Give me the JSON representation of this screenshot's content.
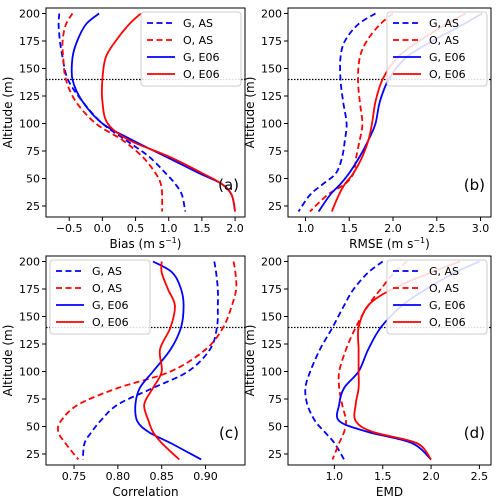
{
  "chart_data": [
    {
      "type": "line",
      "panel_label": "(a)",
      "xlabel": "Bias (m s$^{-1}$)",
      "xlabel_main": "Bias (m s",
      "xlabel_sup": "−1",
      "xlabel_end": ")",
      "ylabel": "Altitude (m)",
      "xlim": [
        -0.85,
        2.15
      ],
      "ylim": [
        15,
        205
      ],
      "xticks": [
        -0.5,
        0.0,
        0.5,
        1.0,
        1.5,
        2.0
      ],
      "xtick_labels": [
        "−0.5",
        "0.0",
        "0.5",
        "1.0",
        "1.5",
        "2.0"
      ],
      "yticks": [
        25,
        50,
        75,
        100,
        125,
        150,
        175,
        200
      ],
      "ytick_labels": [
        "25",
        "50",
        "75",
        "100",
        "125",
        "150",
        "175",
        "200"
      ],
      "hline": 140,
      "legend_position": "top-right",
      "series": [
        {
          "name": "G, AS",
          "color": "#0000ff",
          "dashed": true,
          "x": [
            -0.65,
            -0.66,
            -0.64,
            -0.6,
            -0.52,
            -0.3,
            0.0,
            0.35,
            0.7,
            0.95,
            1.1,
            1.2,
            1.25
          ],
          "y": [
            200,
            190,
            175,
            160,
            140,
            120,
            100,
            85,
            70,
            55,
            45,
            35,
            20
          ]
        },
        {
          "name": "O, AS",
          "color": "#ff0000",
          "dashed": true,
          "x": [
            -0.45,
            -0.55,
            -0.6,
            -0.59,
            -0.55,
            -0.4,
            -0.1,
            0.3,
            0.6,
            0.8,
            0.88,
            0.9,
            0.9
          ],
          "y": [
            200,
            190,
            175,
            160,
            140,
            120,
            100,
            85,
            70,
            55,
            45,
            35,
            20
          ]
        },
        {
          "name": "G, E06",
          "color": "#0000ff",
          "dashed": false,
          "x": [
            -0.05,
            -0.25,
            -0.38,
            -0.45,
            -0.45,
            -0.3,
            0.0,
            0.45,
            0.95,
            1.45,
            1.8,
            1.95,
            2.0
          ],
          "y": [
            200,
            190,
            175,
            160,
            140,
            120,
            100,
            85,
            70,
            55,
            45,
            35,
            20
          ]
        },
        {
          "name": "O, E06",
          "color": "#ff0000",
          "dashed": false,
          "x": [
            0.58,
            0.4,
            0.2,
            0.05,
            0.0,
            0.0,
            0.08,
            0.4,
            1.0,
            1.5,
            1.8,
            1.95,
            2.0
          ],
          "y": [
            200,
            190,
            175,
            160,
            140,
            120,
            100,
            85,
            70,
            55,
            45,
            35,
            20
          ]
        }
      ]
    },
    {
      "type": "line",
      "panel_label": "(b)",
      "xlabel": "RMSE (m s$^{-1}$)",
      "xlabel_main": "RMSE (m s",
      "xlabel_sup": "−1",
      "xlabel_end": ")",
      "ylabel": "Altitude (m)",
      "xlim": [
        0.8,
        3.12
      ],
      "ylim": [
        15,
        205
      ],
      "xticks": [
        1.0,
        1.5,
        2.0,
        2.5,
        3.0
      ],
      "xtick_labels": [
        "1.0",
        "1.5",
        "2.0",
        "2.5",
        "3.0"
      ],
      "yticks": [
        25,
        50,
        75,
        100,
        125,
        150,
        175,
        200
      ],
      "ytick_labels": [
        "25",
        "50",
        "75",
        "100",
        "125",
        "150",
        "175",
        "200"
      ],
      "hline": 140,
      "legend_position": "top-right",
      "series": [
        {
          "name": "G, AS",
          "color": "#0000ff",
          "dashed": true,
          "x": [
            1.8,
            1.6,
            1.45,
            1.4,
            1.4,
            1.43,
            1.47,
            1.45,
            1.42,
            1.35,
            1.2,
            1.05,
            0.92
          ],
          "y": [
            200,
            190,
            175,
            160,
            140,
            120,
            100,
            85,
            70,
            55,
            45,
            35,
            20
          ]
        },
        {
          "name": "O, AS",
          "color": "#ff0000",
          "dashed": true,
          "x": [
            2.0,
            1.85,
            1.7,
            1.62,
            1.6,
            1.62,
            1.65,
            1.62,
            1.58,
            1.55,
            1.45,
            1.25,
            1.05
          ],
          "y": [
            200,
            190,
            175,
            160,
            140,
            120,
            100,
            85,
            70,
            55,
            45,
            35,
            20
          ]
        },
        {
          "name": "G, E06",
          "color": "#0000ff",
          "dashed": false,
          "x": [
            3.02,
            2.8,
            2.45,
            2.15,
            1.95,
            1.85,
            1.8,
            1.72,
            1.62,
            1.5,
            1.4,
            1.28,
            1.15
          ],
          "y": [
            200,
            190,
            175,
            160,
            140,
            120,
            100,
            85,
            70,
            55,
            45,
            35,
            20
          ]
        },
        {
          "name": "O, E06",
          "color": "#ff0000",
          "dashed": false,
          "x": [
            2.83,
            2.6,
            2.3,
            2.05,
            1.88,
            1.8,
            1.76,
            1.72,
            1.65,
            1.55,
            1.45,
            1.38,
            1.3
          ],
          "y": [
            200,
            190,
            175,
            160,
            140,
            120,
            100,
            85,
            70,
            55,
            45,
            35,
            20
          ]
        }
      ]
    },
    {
      "type": "line",
      "panel_label": "(c)",
      "xlabel": "Correlation",
      "xlabel_main": "Correlation",
      "xlabel_sup": "",
      "xlabel_end": "",
      "ylabel": "Altitude (m)",
      "xlim": [
        0.718,
        0.945
      ],
      "ylim": [
        15,
        205
      ],
      "xticks": [
        0.75,
        0.8,
        0.85,
        0.9
      ],
      "xtick_labels": [
        "0.75",
        "0.80",
        "0.85",
        "0.90"
      ],
      "yticks": [
        25,
        50,
        75,
        100,
        125,
        150,
        175,
        200
      ],
      "ytick_labels": [
        "25",
        "50",
        "75",
        "100",
        "125",
        "150",
        "175",
        "200"
      ],
      "hline": 140,
      "legend_position": "top-left",
      "series": [
        {
          "name": "G, AS",
          "color": "#0000ff",
          "dashed": true,
          "x": [
            0.91,
            0.912,
            0.914,
            0.914,
            0.913,
            0.905,
            0.88,
            0.84,
            0.8,
            0.78,
            0.77,
            0.762,
            0.76
          ],
          "y": [
            200,
            190,
            175,
            160,
            140,
            120,
            100,
            85,
            70,
            55,
            45,
            35,
            20
          ]
        },
        {
          "name": "O, AS",
          "color": "#ff0000",
          "dashed": true,
          "x": [
            0.932,
            0.934,
            0.935,
            0.93,
            0.92,
            0.9,
            0.86,
            0.8,
            0.755,
            0.735,
            0.732,
            0.74,
            0.755
          ],
          "y": [
            200,
            190,
            175,
            160,
            140,
            120,
            100,
            85,
            70,
            55,
            45,
            35,
            20
          ]
        },
        {
          "name": "G, E06",
          "color": "#0000ff",
          "dashed": false,
          "x": [
            0.84,
            0.862,
            0.872,
            0.875,
            0.872,
            0.86,
            0.84,
            0.825,
            0.82,
            0.822,
            0.835,
            0.86,
            0.895
          ],
          "y": [
            200,
            190,
            175,
            160,
            140,
            120,
            100,
            85,
            70,
            55,
            45,
            35,
            20
          ]
        },
        {
          "name": "O, E06",
          "color": "#ff0000",
          "dashed": false,
          "x": [
            0.85,
            0.85,
            0.857,
            0.865,
            0.86,
            0.848,
            0.85,
            0.84,
            0.83,
            0.835,
            0.84,
            0.85,
            0.87
          ],
          "y": [
            200,
            190,
            175,
            160,
            140,
            120,
            100,
            85,
            70,
            55,
            45,
            35,
            20
          ]
        }
      ]
    },
    {
      "type": "line",
      "panel_label": "(d)",
      "xlabel": "EMD",
      "xlabel_main": "EMD",
      "xlabel_sup": "",
      "xlabel_end": "",
      "ylabel": "Altitude (m)",
      "xlim": [
        0.52,
        2.62
      ],
      "ylim": [
        15,
        205
      ],
      "xticks": [
        1.0,
        1.5,
        2.0,
        2.5
      ],
      "xtick_labels": [
        "1.0",
        "1.5",
        "2.0",
        "2.5"
      ],
      "yticks": [
        25,
        50,
        75,
        100,
        125,
        150,
        175,
        200
      ],
      "ytick_labels": [
        "25",
        "50",
        "75",
        "100",
        "125",
        "150",
        "175",
        "200"
      ],
      "hline": 140,
      "legend_position": "top-right",
      "series": [
        {
          "name": "G, AS",
          "color": "#0000ff",
          "dashed": true,
          "x": [
            1.5,
            1.35,
            1.2,
            1.1,
            0.98,
            0.85,
            0.75,
            0.7,
            0.72,
            0.8,
            0.9,
            1.0,
            1.1
          ],
          "y": [
            200,
            190,
            175,
            160,
            140,
            120,
            100,
            85,
            70,
            55,
            45,
            35,
            20
          ]
        },
        {
          "name": "O, AS",
          "color": "#ff0000",
          "dashed": true,
          "x": [
            1.75,
            1.62,
            1.48,
            1.35,
            1.22,
            1.12,
            1.05,
            1.05,
            1.08,
            1.12,
            1.1,
            1.05,
            0.98
          ],
          "y": [
            200,
            190,
            175,
            160,
            140,
            120,
            100,
            85,
            70,
            55,
            45,
            35,
            20
          ]
        },
        {
          "name": "G, E06",
          "color": "#0000ff",
          "dashed": false,
          "x": [
            2.5,
            2.25,
            1.95,
            1.7,
            1.48,
            1.35,
            1.25,
            1.1,
            1.05,
            1.05,
            1.35,
            1.8,
            2.0
          ],
          "y": [
            200,
            190,
            175,
            160,
            140,
            120,
            100,
            85,
            70,
            55,
            45,
            35,
            20
          ]
        },
        {
          "name": "O, E06",
          "color": "#ff0000",
          "dashed": false,
          "x": [
            2.3,
            2.0,
            1.6,
            1.35,
            1.25,
            1.25,
            1.25,
            1.25,
            1.22,
            1.22,
            1.4,
            1.85,
            2.0
          ],
          "y": [
            200,
            190,
            175,
            160,
            140,
            120,
            100,
            85,
            70,
            55,
            45,
            35,
            20
          ]
        }
      ]
    }
  ]
}
